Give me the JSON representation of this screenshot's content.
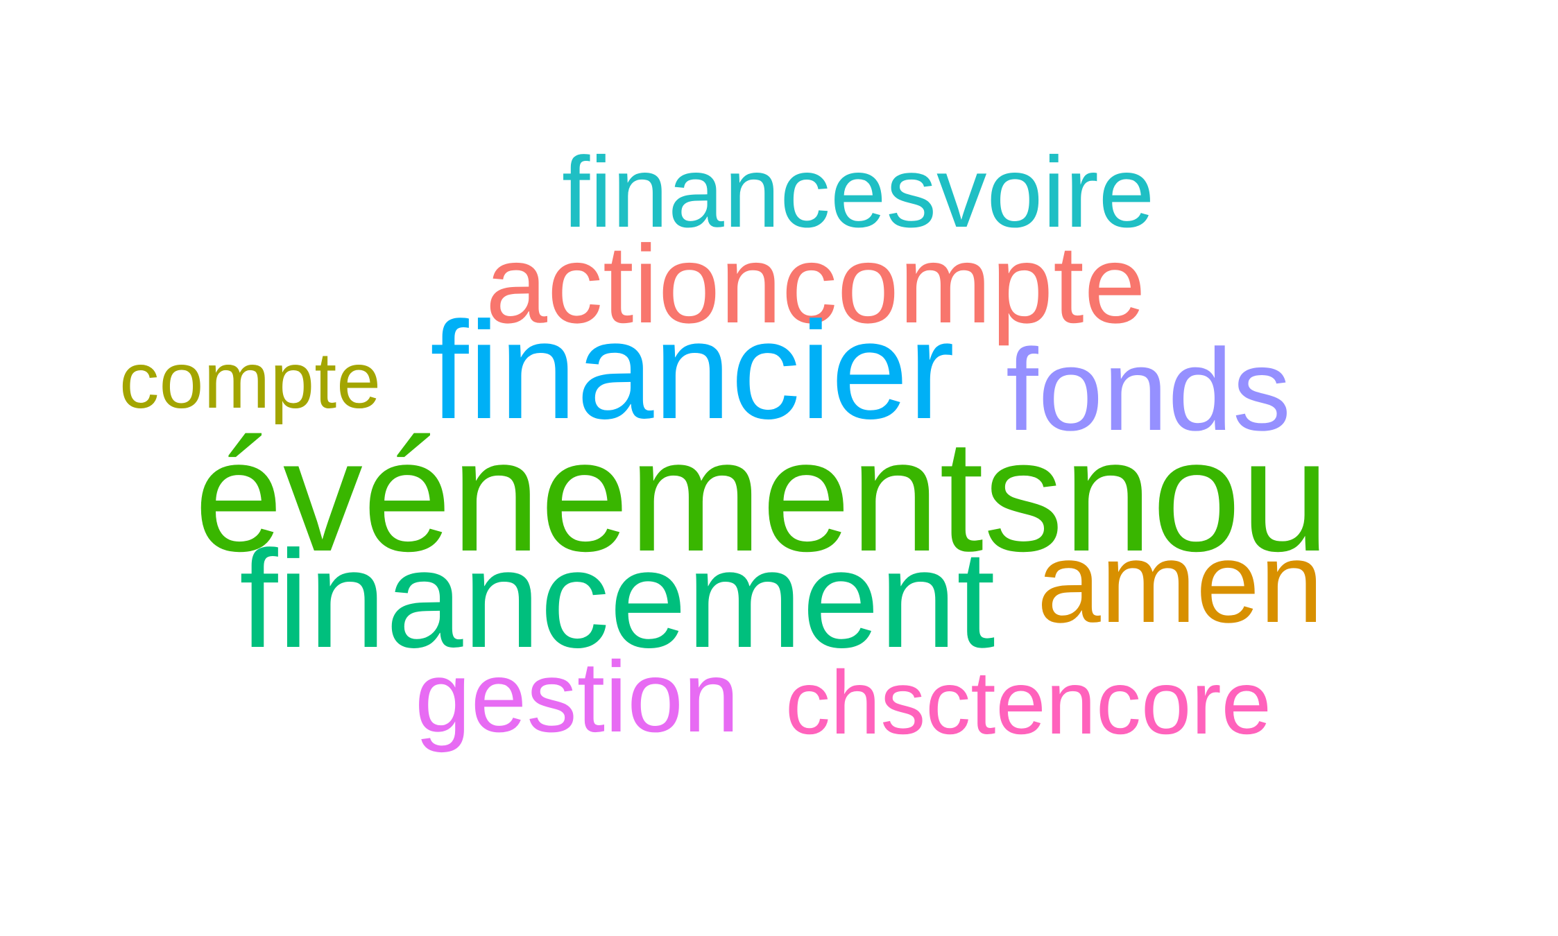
{
  "words": [
    {
      "id": "financesvoire",
      "text": "financesvoire",
      "color": "#1fbfc4"
    },
    {
      "id": "actioncompte",
      "text": "actioncompte",
      "color": "#f8766d"
    },
    {
      "id": "financier",
      "text": "financier",
      "color": "#00b0f6"
    },
    {
      "id": "compte",
      "text": "compte",
      "color": "#a3a500"
    },
    {
      "id": "fonds",
      "text": "fonds",
      "color": "#9590ff"
    },
    {
      "id": "evenements",
      "text": "événementsnou",
      "color": "#39b600"
    },
    {
      "id": "financement",
      "text": "financement",
      "color": "#00bf7d"
    },
    {
      "id": "amen",
      "text": "amen",
      "color": "#d89000"
    },
    {
      "id": "gestion",
      "text": "gestion",
      "color": "#e76bf3"
    },
    {
      "id": "chsctencore",
      "text": "chsctencore",
      "color": "#ff62bc"
    }
  ]
}
